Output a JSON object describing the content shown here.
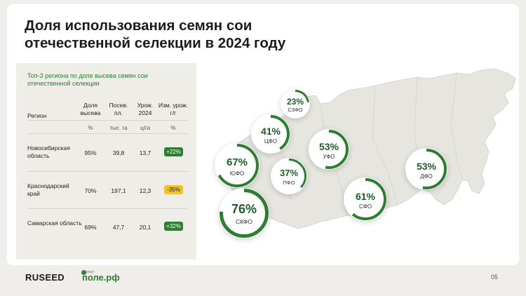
{
  "slide": {
    "title": "Доля использования семян сои отечественной селекции в 2024 году",
    "page_number": "05"
  },
  "table": {
    "heading": "Топ-3 региона по доле высева семян сои отечественной селекции",
    "headers": {
      "region": "Регион",
      "share": "Доля высева",
      "area": "Посев. пл.",
      "yield": "Урож. 2024",
      "change": "Изм. урож. г/г"
    },
    "units": {
      "share": "%",
      "area": "тыс. га",
      "yield": "ц/га",
      "change": "%"
    },
    "rows": [
      {
        "region": "Новосибирская область",
        "share": "95%",
        "area": "39,8",
        "yield": "13,7",
        "change": "+22%",
        "trend": "up"
      },
      {
        "region": "Краснодарский край",
        "share": "70%",
        "area": "197,1",
        "yield": "12,3",
        "change": "-35%",
        "trend": "down"
      },
      {
        "region": "Самарская область",
        "share": "69%",
        "area": "47,7",
        "yield": "20,1",
        "change": "+32%",
        "trend": "up"
      }
    ]
  },
  "districts": [
    {
      "id": "szfo",
      "name": "СЗФО",
      "pct": "23%",
      "value": 0.23
    },
    {
      "id": "cfo",
      "name": "ЦФО",
      "pct": "41%",
      "value": 0.41
    },
    {
      "id": "ufo",
      "name": "УФО",
      "pct": "53%",
      "value": 0.53
    },
    {
      "id": "yufo",
      "name": "ЮФО",
      "pct": "67%",
      "value": 0.67
    },
    {
      "id": "pfo",
      "name": "ПФО",
      "pct": "37%",
      "value": 0.37
    },
    {
      "id": "dfo",
      "name": "ДФО",
      "pct": "53%",
      "value": 0.53
    },
    {
      "id": "sfo",
      "name": "СФО",
      "pct": "61%",
      "value": 0.61
    },
    {
      "id": "skfo",
      "name": "СКФО",
      "pct": "76%",
      "value": 0.76
    }
  ],
  "footer": {
    "brand": "RUSEED",
    "partner_small": "журнал",
    "partner": "поле.рф"
  },
  "colors": {
    "accent": "#2e7d32",
    "down": "#f2c12e",
    "map": "#e6e5e0"
  }
}
